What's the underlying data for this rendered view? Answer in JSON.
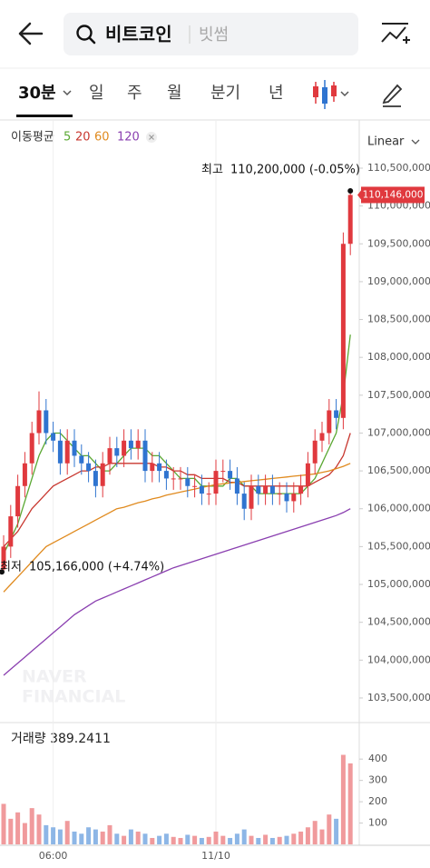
{
  "header": {
    "search_text": "비트코인",
    "exchange": "빗썸"
  },
  "tabs": [
    "30분",
    "일",
    "주",
    "월",
    "분기",
    "년"
  ],
  "watermark": [
    "NAVER",
    "FINANCIAL"
  ],
  "chart_data": [
    {
      "type": "candlestick",
      "legend_title": "이동평균",
      "scale": "Linear",
      "up_color": "#e0393e",
      "down_color": "#2f74d0",
      "open": [
        105200000,
        105500000,
        105900000,
        106300000,
        106600000,
        107000000,
        107300000,
        107000000,
        106900000,
        106600000,
        106900000,
        106700000,
        106600000,
        106500000,
        106300000,
        106600000,
        106800000,
        106700000,
        106900000,
        106800000,
        106900000,
        106500000,
        106600000,
        106500000,
        106400000,
        106400000,
        106400000,
        106300000,
        106300000,
        106200000,
        106200000,
        106500000,
        106500000,
        106400000,
        106200000,
        106000000,
        106300000,
        106200000,
        106300000,
        106200000,
        106200000,
        106100000,
        106200000,
        106300000,
        106600000,
        106900000,
        107000000,
        107300000,
        107200000,
        109500000
      ],
      "high": [
        105650000,
        106050000,
        106450000,
        106750000,
        107150000,
        107550000,
        107450000,
        107150000,
        107050000,
        107050000,
        107050000,
        106850000,
        106750000,
        106650000,
        106750000,
        106950000,
        106950000,
        107050000,
        107050000,
        107050000,
        107050000,
        106750000,
        106750000,
        106650000,
        106550000,
        106550000,
        106550000,
        106450000,
        106450000,
        106350000,
        106650000,
        106650000,
        106650000,
        106550000,
        106350000,
        106450000,
        106450000,
        106450000,
        106450000,
        106350000,
        106350000,
        106350000,
        106450000,
        106750000,
        107050000,
        107150000,
        107450000,
        107450000,
        109650000,
        110200000
      ],
      "low": [
        105166000,
        105350000,
        105750000,
        106150000,
        106450000,
        106850000,
        106850000,
        106750000,
        106450000,
        106450000,
        106550000,
        106450000,
        106350000,
        106150000,
        106150000,
        106450000,
        106550000,
        106550000,
        106650000,
        106650000,
        106350000,
        106350000,
        106350000,
        106250000,
        106250000,
        106250000,
        106150000,
        106150000,
        106050000,
        106050000,
        106050000,
        106350000,
        106250000,
        106050000,
        105850000,
        105850000,
        106050000,
        106050000,
        106050000,
        106050000,
        105950000,
        105950000,
        106050000,
        106150000,
        106450000,
        106750000,
        106850000,
        107050000,
        107050000,
        109350000
      ],
      "close": [
        105500000,
        105900000,
        106300000,
        106600000,
        107000000,
        107300000,
        107000000,
        106900000,
        106600000,
        106900000,
        106700000,
        106600000,
        106500000,
        106300000,
        106600000,
        106800000,
        106700000,
        106900000,
        106800000,
        106900000,
        106500000,
        106600000,
        106500000,
        106400000,
        106400000,
        106400000,
        106300000,
        106300000,
        106200000,
        106200000,
        106500000,
        106500000,
        106400000,
        106200000,
        106000000,
        106300000,
        106200000,
        106300000,
        106200000,
        106200000,
        106100000,
        106200000,
        106300000,
        106600000,
        106900000,
        107000000,
        107300000,
        107200000,
        109500000,
        110146000
      ],
      "series": [
        {
          "name": "5",
          "color": "#5aa832",
          "values": [
            105400000,
            105600000,
            105800000,
            106100000,
            106400000,
            106700000,
            106900000,
            107000000,
            107000000,
            106900000,
            106800000,
            106700000,
            106700000,
            106600000,
            106500000,
            106500000,
            106600000,
            106700000,
            106800000,
            106800000,
            106800000,
            106700000,
            106700000,
            106600000,
            106500000,
            106400000,
            106400000,
            106400000,
            106300000,
            106300000,
            106300000,
            106300000,
            106400000,
            106400000,
            106300000,
            106300000,
            106200000,
            106200000,
            106200000,
            106200000,
            106200000,
            106200000,
            106200000,
            106300000,
            106400000,
            106600000,
            106800000,
            107000000,
            107500000,
            108300000
          ]
        },
        {
          "name": "20",
          "color": "#c8372f",
          "values": [
            105500000,
            105600000,
            105700000,
            105850000,
            106000000,
            106100000,
            106200000,
            106300000,
            106350000,
            106400000,
            106450000,
            106500000,
            106500000,
            106550000,
            106550000,
            106600000,
            106600000,
            106600000,
            106600000,
            106600000,
            106600000,
            106600000,
            106550000,
            106550000,
            106500000,
            106500000,
            106450000,
            106450000,
            106400000,
            106400000,
            106400000,
            106400000,
            106350000,
            106350000,
            106300000,
            106300000,
            106300000,
            106300000,
            106300000,
            106300000,
            106300000,
            106300000,
            106300000,
            106300000,
            106350000,
            106400000,
            106450000,
            106550000,
            106700000,
            107000000
          ]
        },
        {
          "name": "60",
          "color": "#e08a1e",
          "values": [
            104900000,
            105000000,
            105100000,
            105200000,
            105300000,
            105400000,
            105500000,
            105550000,
            105600000,
            105650000,
            105700000,
            105750000,
            105800000,
            105850000,
            105900000,
            105950000,
            106000000,
            106020000,
            106050000,
            106080000,
            106100000,
            106130000,
            106150000,
            106180000,
            106200000,
            106220000,
            106240000,
            106260000,
            106280000,
            106300000,
            106320000,
            106330000,
            106340000,
            106350000,
            106360000,
            106370000,
            106380000,
            106390000,
            106400000,
            106410000,
            106420000,
            106430000,
            106440000,
            106450000,
            106460000,
            106480000,
            106500000,
            106530000,
            106560000,
            106600000
          ]
        },
        {
          "name": "120",
          "color": "#8a3fb0",
          "values": [
            103800000,
            103880000,
            103960000,
            104040000,
            104120000,
            104200000,
            104280000,
            104360000,
            104440000,
            104520000,
            104600000,
            104660000,
            104720000,
            104780000,
            104820000,
            104860000,
            104900000,
            104940000,
            104980000,
            105020000,
            105060000,
            105100000,
            105140000,
            105180000,
            105220000,
            105250000,
            105280000,
            105310000,
            105340000,
            105370000,
            105400000,
            105430000,
            105460000,
            105490000,
            105520000,
            105550000,
            105580000,
            105610000,
            105640000,
            105670000,
            105700000,
            105730000,
            105760000,
            105790000,
            105820000,
            105850000,
            105880000,
            105910000,
            105950000,
            106000000
          ]
        }
      ],
      "ylim": [
        103175000,
        110680000
      ],
      "yticks": [
        {
          "value": 110500000,
          "label": "110,500,000"
        },
        {
          "value": 110000000,
          "label": "110,000,000"
        },
        {
          "value": 109500000,
          "label": "109,500,000"
        },
        {
          "value": 109000000,
          "label": "109,000,000"
        },
        {
          "value": 108500000,
          "label": "108,500,000"
        },
        {
          "value": 108000000,
          "label": "108,000,000"
        },
        {
          "value": 107500000,
          "label": "107,500,000"
        },
        {
          "value": 107000000,
          "label": "107,000,000"
        },
        {
          "value": 106500000,
          "label": "106,500,000"
        },
        {
          "value": 106000000,
          "label": "106,000,000"
        },
        {
          "value": 105500000,
          "label": "105,500,000"
        },
        {
          "value": 105000000,
          "label": "105,000,000"
        },
        {
          "value": 104500000,
          "label": "104,500,000"
        },
        {
          "value": 104000000,
          "label": "104,000,000"
        },
        {
          "value": 103500000,
          "label": "103,500,000"
        }
      ],
      "price_label": {
        "value": 110146000,
        "label": "110,146,000"
      },
      "high_note": {
        "prefix": "최고",
        "text": "110,200,000 (-0.05%)"
      },
      "low_note": {
        "prefix": "최저",
        "text": "105,166,000 (+4.74%)"
      }
    },
    {
      "type": "bar",
      "title": "거래량 389.2411",
      "up_color": "#f09a9c",
      "down_color": "#8db6e6",
      "categories": [
        null,
        null,
        null,
        null,
        null,
        null,
        null,
        "06:00",
        null,
        null,
        null,
        null,
        null,
        null,
        null,
        null,
        null,
        null,
        null,
        null,
        null,
        null,
        null,
        null,
        null,
        null,
        null,
        null,
        null,
        null,
        "11/10",
        null,
        null,
        null,
        null,
        null,
        null,
        null,
        null,
        null,
        null,
        null,
        null,
        null,
        null,
        null,
        null,
        null,
        null,
        null
      ],
      "values": [
        190,
        120,
        150,
        100,
        170,
        140,
        90,
        80,
        70,
        110,
        60,
        50,
        80,
        70,
        60,
        90,
        50,
        40,
        70,
        60,
        50,
        30,
        40,
        50,
        35,
        30,
        45,
        40,
        30,
        35,
        60,
        40,
        30,
        50,
        70,
        40,
        30,
        45,
        30,
        35,
        40,
        50,
        60,
        80,
        110,
        70,
        140,
        120,
        420,
        380
      ],
      "ylim": [
        0,
        550
      ],
      "yticks": [
        100,
        200,
        300,
        400
      ]
    }
  ]
}
